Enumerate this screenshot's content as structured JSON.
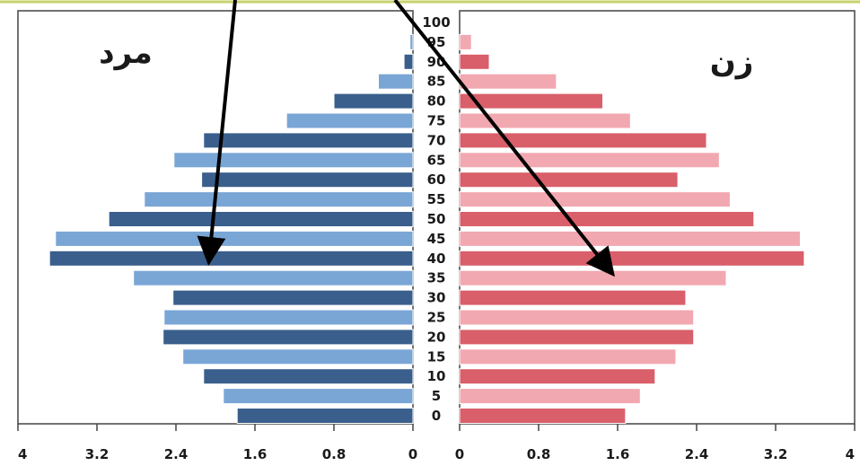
{
  "chart_data": {
    "type": "bar",
    "orientation": "horizontal",
    "layout": "population-pyramid",
    "title": "",
    "xlabel": "",
    "ylabel": "",
    "xlim": [
      0,
      4
    ],
    "x_ticks": [
      "4",
      "3.2",
      "2.4",
      "1.6",
      "0.8",
      "0",
      "0",
      "0.8",
      "1.6",
      "2.4",
      "3.2",
      "4"
    ],
    "categories": [
      "0",
      "5",
      "10",
      "15",
      "20",
      "25",
      "30",
      "35",
      "40",
      "45",
      "50",
      "55",
      "60",
      "65",
      "70",
      "75",
      "80",
      "85",
      "90",
      "95",
      "100"
    ],
    "series": [
      {
        "name": "مرد",
        "side": "left",
        "colors": [
          "#3a5f8c",
          "#7aa6d6"
        ],
        "values": [
          1.78,
          1.92,
          2.12,
          2.33,
          2.53,
          2.52,
          2.43,
          2.83,
          3.68,
          3.62,
          3.08,
          2.72,
          2.14,
          2.42,
          2.12,
          1.28,
          0.8,
          0.35,
          0.09,
          0.03,
          0.0
        ]
      },
      {
        "name": "زن",
        "side": "right",
        "colors": [
          "#d95f6a",
          "#f2a8b0"
        ],
        "values": [
          1.68,
          1.83,
          1.98,
          2.19,
          2.37,
          2.37,
          2.29,
          2.7,
          3.49,
          3.45,
          2.98,
          2.74,
          2.21,
          2.63,
          2.5,
          1.73,
          1.45,
          0.98,
          0.3,
          0.12,
          0.0
        ]
      }
    ],
    "grid": false,
    "legend": "none"
  }
}
